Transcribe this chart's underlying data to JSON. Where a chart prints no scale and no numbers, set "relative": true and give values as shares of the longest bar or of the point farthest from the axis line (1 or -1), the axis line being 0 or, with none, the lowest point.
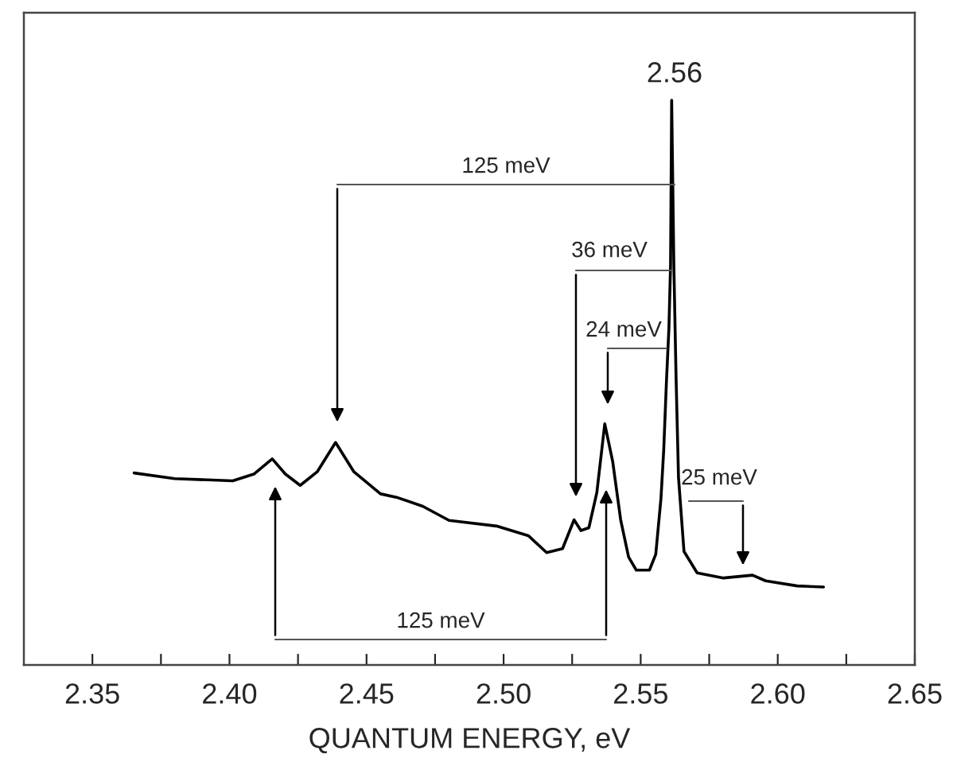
{
  "chart_data": {
    "type": "line",
    "xlabel": "QUANTUM ENERGY, eV",
    "relative": true,
    "xlim": [
      2.325,
      2.65
    ],
    "xticks": [
      2.35,
      {
        "value": 2.375,
        "label": null
      },
      {
        "value": 2.4,
        "label": "2.40"
      },
      {
        "value": 2.425,
        "label": null
      },
      2.45,
      {
        "value": 2.475,
        "label": null
      },
      {
        "value": 2.5,
        "label": "2.50"
      },
      {
        "value": 2.525,
        "label": null
      },
      2.55,
      {
        "value": 2.575,
        "label": null
      },
      {
        "value": 2.6,
        "label": "2.60"
      },
      {
        "value": 2.625,
        "label": null
      },
      2.65
    ],
    "grid": false,
    "legend": false,
    "marker": "none",
    "line_style": "solid",
    "series": [
      {
        "color": "#000000",
        "x": [
          2.3652,
          2.38,
          2.4012,
          2.4089,
          2.4156,
          2.4204,
          2.4258,
          2.432,
          2.4387,
          2.4454,
          2.4551,
          2.4609,
          2.4705,
          2.4801,
          2.4974,
          2.509,
          2.5157,
          2.5215,
          2.5257,
          2.5282,
          2.5311,
          2.534,
          2.5369,
          2.5398,
          2.5427,
          2.5456,
          2.5484,
          2.5532,
          2.5555,
          2.5574,
          2.5584,
          2.5594,
          2.5603,
          2.5609,
          2.5613,
          2.5621,
          2.5629,
          2.5638,
          2.5658,
          2.5706,
          2.5802,
          2.5908,
          2.5956,
          2.6071,
          2.6167
        ],
        "values": [
          0.34,
          0.33,
          0.326,
          0.338,
          0.365,
          0.338,
          0.318,
          0.342,
          0.394,
          0.342,
          0.303,
          0.297,
          0.281,
          0.256,
          0.246,
          0.229,
          0.199,
          0.206,
          0.257,
          0.238,
          0.243,
          0.305,
          0.427,
          0.36,
          0.257,
          0.191,
          0.168,
          0.168,
          0.196,
          0.295,
          0.38,
          0.502,
          0.596,
          0.708,
          1,
          0.708,
          0.511,
          0.332,
          0.201,
          0.163,
          0.154,
          0.159,
          0.149,
          0.14,
          0.138
        ]
      }
    ],
    "annotations": [
      "2.56",
      "125 meV",
      "36 meV",
      "24 meV",
      "25 meV",
      "125 meV"
    ]
  }
}
